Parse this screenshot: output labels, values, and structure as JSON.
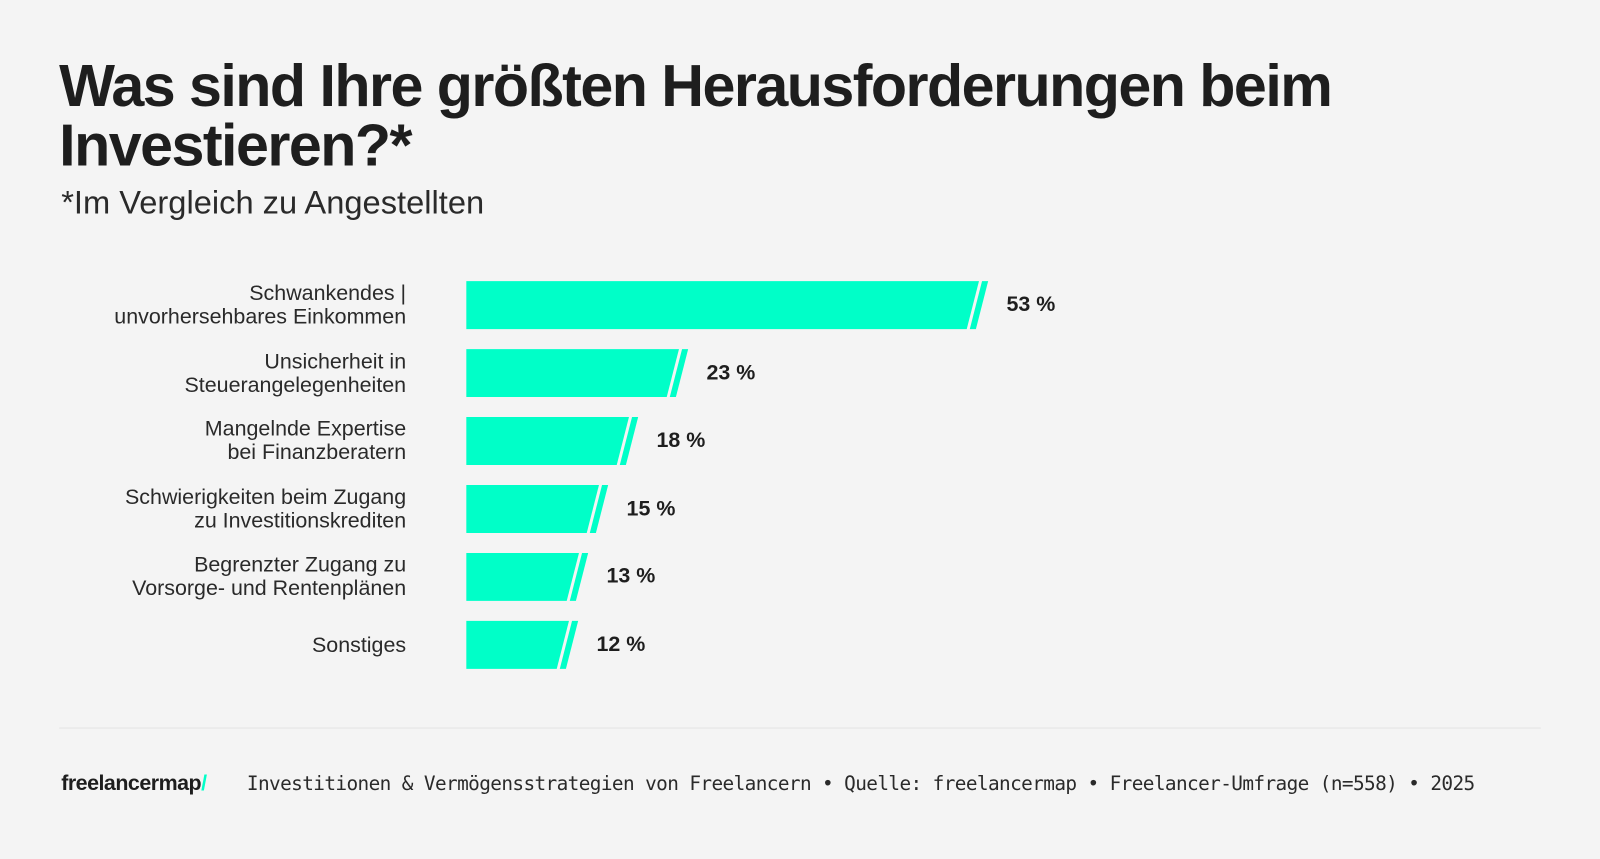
{
  "title": "Was sind Ihre größten Herausforderungen beim Investieren?*",
  "subtitle": "*Im Vergleich zu Angestellten",
  "chart_data": {
    "type": "bar",
    "orientation": "horizontal",
    "categories": [
      "Schwankendes |\nunvorhersehbares Einkommen",
      "Unsicherheit in\nSteuerangelegenheiten",
      "Mangelnde Expertise\nbei Finanzberatern",
      "Schwierigkeiten beim Zugang\nzu Investitionskrediten",
      "Begrenzter Zugang zu\nVorsorge- und Rentenplänen",
      "Sonstiges"
    ],
    "values": [
      53,
      23,
      18,
      15,
      13,
      12
    ],
    "value_labels": [
      "53 %",
      "23 %",
      "18 %",
      "15 %",
      "13 %",
      "12 %"
    ],
    "unit": "%",
    "bar_color": "#00ffc8",
    "grid": false
  },
  "footer": {
    "logo_text": "freelancermap",
    "logo_slash": "/",
    "source_line": "Investitionen & Vermögensstrategien von Freelancern • Quelle: freelancermap • Freelancer-Umfrage (n=558) • 2025"
  }
}
